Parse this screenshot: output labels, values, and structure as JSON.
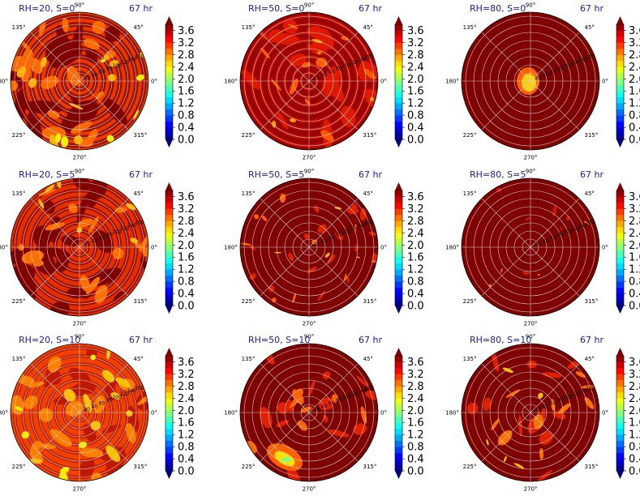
{
  "chart_data": {
    "type": "heatmap",
    "projection": "polar",
    "grid": true,
    "radial_ticks": [
      "20",
      "40",
      "60",
      "80",
      "100",
      "120",
      "140",
      "160"
    ],
    "angle_ticks": [
      "0°",
      "45°",
      "90°",
      "135°",
      "180°",
      "225°",
      "270°",
      "315°"
    ],
    "colorbar": {
      "ticks": [
        "0.0",
        "0.4",
        "0.8",
        "1.2",
        "1.6",
        "2.0",
        "2.4",
        "2.8",
        "3.2",
        "3.6"
      ],
      "range": [
        0,
        3.8
      ],
      "colormap": "jet",
      "extend": "both"
    },
    "time_label": "67 hr",
    "panels": [
      {
        "title": "RH=20, S=0",
        "time": "67 hr",
        "field": "orange-red mix with dark-red rings, yellow patches near edge"
      },
      {
        "title": "RH=50, S=0",
        "time": "67 hr",
        "field": "mostly dark red with red/orange rings"
      },
      {
        "title": "RH=80, S=0",
        "time": "67 hr",
        "field": "uniform dark red with small yellow-orange core"
      },
      {
        "title": "RH=20, S=5",
        "time": "67 hr",
        "field": "orange-red spiral with dark-red bands"
      },
      {
        "title": "RH=50, S=5",
        "time": "67 hr",
        "field": "dark red with scattered orange streaks"
      },
      {
        "title": "RH=80, S=5",
        "time": "67 hr",
        "field": "dark red with faint red core"
      },
      {
        "title": "RH=20, S=10",
        "time": "67 hr",
        "field": "orange-red dominated, yellow near top edge"
      },
      {
        "title": "RH=50, S=10",
        "time": "67 hr",
        "field": "dark red with yellow-green patch lower left"
      },
      {
        "title": "RH=80, S=10",
        "time": "67 hr",
        "field": "dark red with orange-yellow bands upper right"
      }
    ]
  },
  "colors": {
    "title": "#1a1ab0",
    "dark_red": "#800000",
    "red": "#e01000",
    "orange": "#ff6000",
    "yellow": "#ffe000"
  }
}
